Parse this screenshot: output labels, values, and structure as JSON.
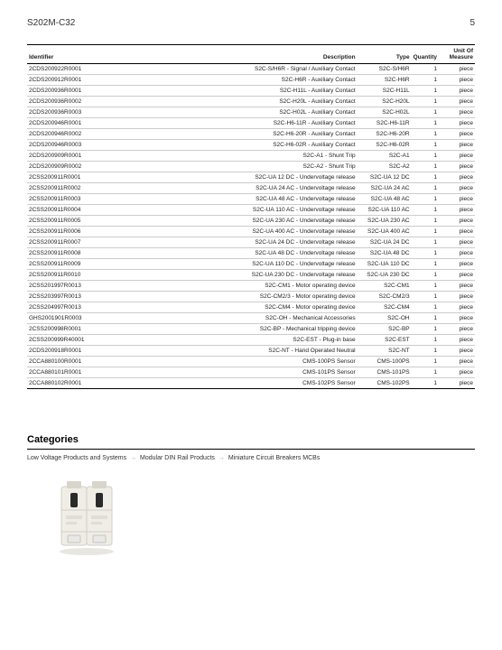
{
  "header": {
    "code": "S202M-C32",
    "page": "5"
  },
  "table": {
    "columns": [
      "Identifier",
      "Description",
      "Type",
      "Quantity",
      "Unit Of Measure"
    ],
    "rows": [
      [
        "2CDS200922R0001",
        "S2C-S/H6R - Signal / Auxiliary Contact",
        "S2C-S/H6R",
        "1",
        "piece"
      ],
      [
        "2CDS200912R0001",
        "S2C-H6R - Auxiliary Contact",
        "S2C-H6R",
        "1",
        "piece"
      ],
      [
        "2CDS200936R0001",
        "S2C-H11L - Auxiliary Contact",
        "S2C-H11L",
        "1",
        "piece"
      ],
      [
        "2CDS200936R0002",
        "S2C-H20L - Auxiliary Contact",
        "S2C-H20L",
        "1",
        "piece"
      ],
      [
        "2CDS200936R0003",
        "S2C-H02L - Auxiliary Contact",
        "S2C-H02L",
        "1",
        "piece"
      ],
      [
        "2CDS200946R0001",
        "S2C-H6-11R - Auxiliary Contact",
        "S2C-H6-11R",
        "1",
        "piece"
      ],
      [
        "2CDS200946R0002",
        "S2C-H6-20R - Auxiliary Contact",
        "S2C-H6-20R",
        "1",
        "piece"
      ],
      [
        "2CDS200946R0003",
        "S2C-H6-02R - Auxiliary Contact",
        "S2C-H6-02R",
        "1",
        "piece"
      ],
      [
        "2CDS200909R0001",
        "S2C-A1 - Shunt Trip",
        "S2C-A1",
        "1",
        "piece"
      ],
      [
        "2CDS200909R0002",
        "S2C-A2 - Shunt Trip",
        "S2C-A2",
        "1",
        "piece"
      ],
      [
        "2CSS200911R0001",
        "S2C-UA 12 DC - Undervoltage release",
        "S2C-UA 12 DC",
        "1",
        "piece"
      ],
      [
        "2CSS200911R0002",
        "S2C-UA 24 AC - Undervoltage release",
        "S2C-UA 24 AC",
        "1",
        "piece"
      ],
      [
        "2CSS200911R0003",
        "S2C-UA 48 AC - Undervoltage release",
        "S2C-UA 48 AC",
        "1",
        "piece"
      ],
      [
        "2CSS200911R0004",
        "S2C-UA 110 AC - Undervoltage release",
        "S2C-UA 110 AC",
        "1",
        "piece"
      ],
      [
        "2CSS200911R0005",
        "S2C-UA 230 AC - Undervoltage release",
        "S2C-UA 230 AC",
        "1",
        "piece"
      ],
      [
        "2CSS200911R0006",
        "S2C-UA 400 AC - Undervoltage release",
        "S2C-UA 400 AC",
        "1",
        "piece"
      ],
      [
        "2CSS200911R0007",
        "S2C-UA 24 DC - Undervoltage release",
        "S2C-UA 24 DC",
        "1",
        "piece"
      ],
      [
        "2CSS200911R0008",
        "S2C-UA 48 DC - Undervoltage release",
        "S2C-UA 48 DC",
        "1",
        "piece"
      ],
      [
        "2CSS200911R0009",
        "S2C-UA 110 DC - Undervoltage release",
        "S2C-UA 110 DC",
        "1",
        "piece"
      ],
      [
        "2CSS200911R0010",
        "S2C-UA 230 DC - Undervoltage release",
        "S2C-UA 230 DC",
        "1",
        "piece"
      ],
      [
        "2CSS201997R0013",
        "S2C-CM1 - Motor operating device",
        "S2C-CM1",
        "1",
        "piece"
      ],
      [
        "2CSS203997R0013",
        "S2C-CM2/3 - Motor operating device",
        "S2C-CM2/3",
        "1",
        "piece"
      ],
      [
        "2CSS204997R0013",
        "S2C-CM4 - Motor operating device",
        "S2C-CM4",
        "1",
        "piece"
      ],
      [
        "GHS2001901R0003",
        "S2C-OH - Mechanical Accessories",
        "S2C-OH",
        "1",
        "piece"
      ],
      [
        "2CSS200998R0001",
        "S2C-BP - Mechanical tripping device",
        "S2C-BP",
        "1",
        "piece"
      ],
      [
        "2CSS200999R40001",
        "S2C-EST - Plug-in base",
        "S2C-EST",
        "1",
        "piece"
      ],
      [
        "2CDS200918R0001",
        "S2C-NT - Hand Operated Neutral",
        "S2C-NT",
        "1",
        "piece"
      ],
      [
        "2CCA880100R0001",
        "CMS-100PS Sensor",
        "CMS-100PS",
        "1",
        "piece"
      ],
      [
        "2CCA880101R0001",
        "CMS-101PS Sensor",
        "CMS-101PS",
        "1",
        "piece"
      ],
      [
        "2CCA880102R0001",
        "CMS-102PS Sensor",
        "CMS-102PS",
        "1",
        "piece"
      ]
    ]
  },
  "categories": {
    "title": "Categories",
    "breadcrumb": [
      "Low Voltage Products and Systems",
      "Modular DIN Rail Products",
      "Miniature Circuit Breakers MCBs"
    ],
    "sep": "→"
  },
  "image": {
    "body_color": "#f0ede6",
    "shadow_color": "#d0cec8",
    "switch_color": "#2a2a2a",
    "window_color": "#e8e8e8",
    "text_color": "#555"
  }
}
